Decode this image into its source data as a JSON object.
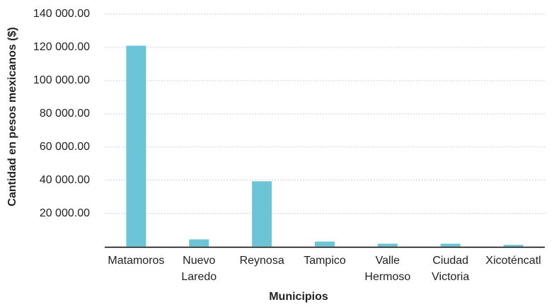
{
  "chart_data": {
    "type": "bar",
    "x_label": "Municipios",
    "y_label": "Cantidad en pesos mexicanos ($)",
    "categories": [
      "Matamoros",
      "Nuevo Laredo",
      "Reynosa",
      "Tampico",
      "Valle Hermoso",
      "Ciudad Victoria",
      "Xicoténcatl"
    ],
    "values": [
      121000,
      4300,
      39300,
      3000,
      1700,
      1700,
      1000
    ],
    "color": "#6cc5d6",
    "ylim": [
      0,
      140000
    ],
    "yticks": [
      {
        "value": 20000,
        "label": "20 000.00"
      },
      {
        "value": 40000,
        "label": "40 000.00"
      },
      {
        "value": 60000,
        "label": "60 000.00"
      },
      {
        "value": 80000,
        "label": "80 000.00"
      },
      {
        "value": 100000,
        "label": "100 000.00"
      },
      {
        "value": 120000,
        "label": "120 000.00"
      },
      {
        "value": 140000,
        "label": "140 000.00"
      }
    ],
    "grid": true
  }
}
